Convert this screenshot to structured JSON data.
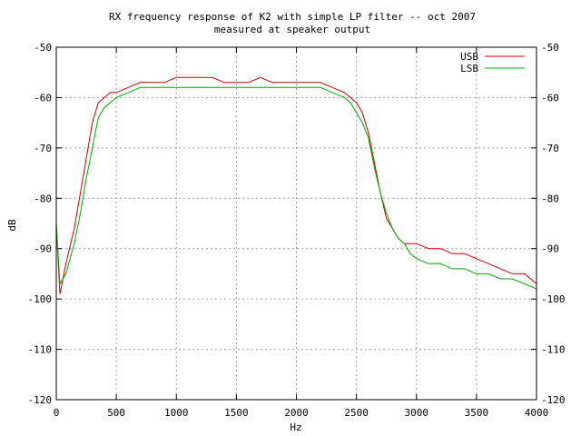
{
  "chart_data": {
    "type": "line",
    "title": "RX frequency response of K2 with simple LP filter -- oct 2007",
    "subtitle": "measured at speaker output",
    "xlabel": "Hz",
    "ylabel": "dB",
    "xlim": [
      0,
      4000
    ],
    "ylim": [
      -120,
      -50
    ],
    "x_ticks": [
      "0",
      "500",
      "1000",
      "1500",
      "2000",
      "2500",
      "3000",
      "3500",
      "4000"
    ],
    "y_ticks": [
      "-50",
      "-60",
      "-70",
      "-80",
      "-90",
      "-100",
      "-110",
      "-120"
    ],
    "grid": true,
    "legend_position": "top-right",
    "series": [
      {
        "name": "USB",
        "color": "#cc0000",
        "points": [
          [
            0,
            -85
          ],
          [
            30,
            -99
          ],
          [
            80,
            -93
          ],
          [
            150,
            -86
          ],
          [
            200,
            -79
          ],
          [
            250,
            -72
          ],
          [
            300,
            -65
          ],
          [
            350,
            -61
          ],
          [
            400,
            -60
          ],
          [
            450,
            -59
          ],
          [
            500,
            -59
          ],
          [
            600,
            -58
          ],
          [
            700,
            -57
          ],
          [
            800,
            -57
          ],
          [
            900,
            -57
          ],
          [
            1000,
            -56
          ],
          [
            1100,
            -56
          ],
          [
            1200,
            -56
          ],
          [
            1300,
            -56
          ],
          [
            1400,
            -57
          ],
          [
            1500,
            -57
          ],
          [
            1600,
            -57
          ],
          [
            1700,
            -56
          ],
          [
            1800,
            -57
          ],
          [
            1900,
            -57
          ],
          [
            2000,
            -57
          ],
          [
            2100,
            -57
          ],
          [
            2200,
            -57
          ],
          [
            2300,
            -58
          ],
          [
            2400,
            -59
          ],
          [
            2500,
            -61
          ],
          [
            2550,
            -63
          ],
          [
            2600,
            -67
          ],
          [
            2650,
            -73
          ],
          [
            2700,
            -79
          ],
          [
            2750,
            -84
          ],
          [
            2800,
            -86
          ],
          [
            2850,
            -88
          ],
          [
            2900,
            -89
          ],
          [
            2950,
            -89
          ],
          [
            3000,
            -89
          ],
          [
            3100,
            -90
          ],
          [
            3200,
            -90
          ],
          [
            3300,
            -91
          ],
          [
            3400,
            -91
          ],
          [
            3500,
            -92
          ],
          [
            3600,
            -93
          ],
          [
            3700,
            -94
          ],
          [
            3800,
            -95
          ],
          [
            3900,
            -95
          ],
          [
            4000,
            -97
          ]
        ]
      },
      {
        "name": "LSB",
        "color": "#00aa00",
        "points": [
          [
            0,
            -85
          ],
          [
            30,
            -97
          ],
          [
            80,
            -95
          ],
          [
            150,
            -89
          ],
          [
            200,
            -83
          ],
          [
            250,
            -76
          ],
          [
            300,
            -70
          ],
          [
            350,
            -64
          ],
          [
            400,
            -62
          ],
          [
            450,
            -61
          ],
          [
            500,
            -60
          ],
          [
            600,
            -59
          ],
          [
            700,
            -58
          ],
          [
            800,
            -58
          ],
          [
            900,
            -58
          ],
          [
            1000,
            -58
          ],
          [
            1100,
            -58
          ],
          [
            1200,
            -58
          ],
          [
            1300,
            -58
          ],
          [
            1400,
            -58
          ],
          [
            1500,
            -58
          ],
          [
            1600,
            -58
          ],
          [
            1700,
            -58
          ],
          [
            1800,
            -58
          ],
          [
            1900,
            -58
          ],
          [
            2000,
            -58
          ],
          [
            2100,
            -58
          ],
          [
            2200,
            -58
          ],
          [
            2300,
            -59
          ],
          [
            2400,
            -60
          ],
          [
            2450,
            -61
          ],
          [
            2500,
            -63
          ],
          [
            2550,
            -65
          ],
          [
            2600,
            -68
          ],
          [
            2650,
            -74
          ],
          [
            2700,
            -79
          ],
          [
            2750,
            -83
          ],
          [
            2800,
            -86
          ],
          [
            2850,
            -88
          ],
          [
            2900,
            -89
          ],
          [
            2950,
            -91
          ],
          [
            3000,
            -92
          ],
          [
            3100,
            -93
          ],
          [
            3200,
            -93
          ],
          [
            3300,
            -94
          ],
          [
            3400,
            -94
          ],
          [
            3500,
            -95
          ],
          [
            3600,
            -95
          ],
          [
            3700,
            -96
          ],
          [
            3800,
            -96
          ],
          [
            3900,
            -97
          ],
          [
            4000,
            -98
          ]
        ]
      }
    ]
  }
}
